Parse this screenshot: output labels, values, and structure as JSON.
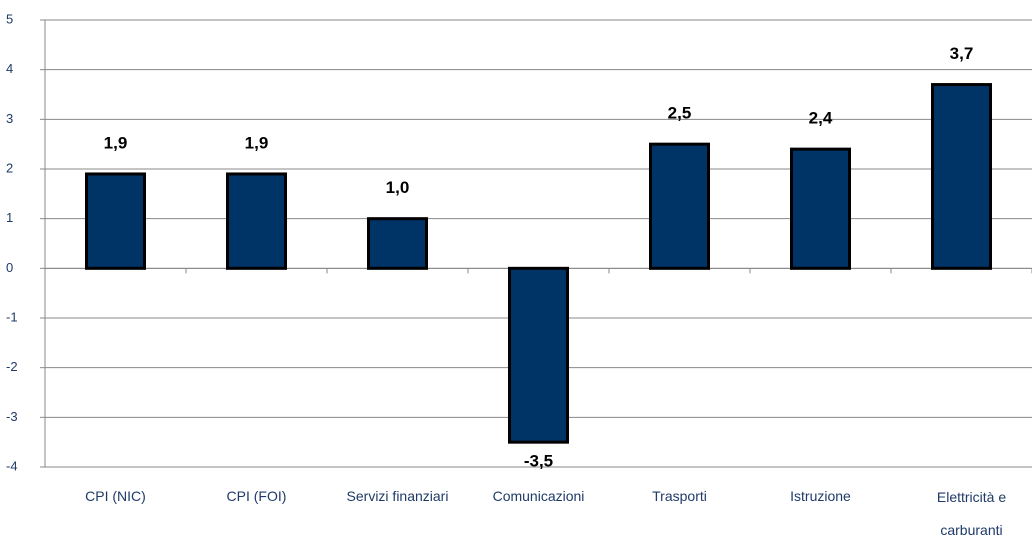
{
  "chart_data": {
    "type": "bar",
    "categories": [
      "CPI (NIC)",
      "CPI (FOI)",
      "Servizi finanziari",
      "Comunicazioni",
      "Trasporti",
      "Istruzione",
      "Elettricità e carburanti"
    ],
    "values": [
      1.9,
      1.9,
      1.0,
      -3.5,
      2.5,
      2.4,
      3.7
    ],
    "value_labels": [
      "1,9",
      "1,9",
      "1,0",
      "-3,5",
      "2,5",
      "2,4",
      "3,7"
    ],
    "color": "#003366",
    "ylim": [
      -4,
      5
    ],
    "yticks": [
      -4,
      -3,
      -2,
      -1,
      0,
      1,
      2,
      3,
      4,
      5
    ],
    "grid": true
  }
}
